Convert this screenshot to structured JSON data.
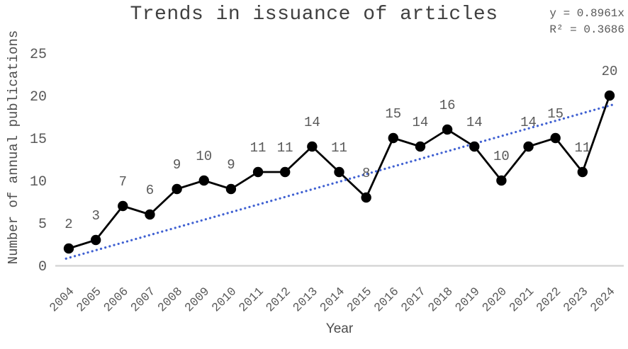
{
  "chart_data": {
    "type": "line",
    "title": "Trends in issuance of articles",
    "xlabel": "Year",
    "ylabel": "Number of annual publications",
    "categories": [
      "2004",
      "2005",
      "2006",
      "2007",
      "2008",
      "2009",
      "2010",
      "2011",
      "2012",
      "2013",
      "2014",
      "2015",
      "2016",
      "2017",
      "2018",
      "2019",
      "2020",
      "2021",
      "2022",
      "2023",
      "2024"
    ],
    "values": [
      2,
      3,
      7,
      6,
      9,
      10,
      9,
      11,
      11,
      14,
      11,
      8,
      15,
      14,
      16,
      14,
      10,
      14,
      15,
      11,
      20
    ],
    "data_labels_shown": true,
    "y_ticks": [
      0,
      5,
      10,
      15,
      20,
      25
    ],
    "ylim": [
      0,
      25
    ],
    "grid": false,
    "legend": "none",
    "trendline": {
      "equation_label": "y = 0.8961x",
      "r_squared_label": "R² = 0.3686",
      "slope": 0.8961,
      "style": "dotted",
      "color": "#4061d2"
    },
    "colors": {
      "series_line": "#000000",
      "marker": "#000000",
      "data_label_text": "#595959",
      "tick_text": "#595959",
      "title_text": "#3f3f3f",
      "axis_title_text": "#4d4d4d",
      "equation_text": "#595959",
      "axis_line": "#d2d2d2"
    }
  }
}
